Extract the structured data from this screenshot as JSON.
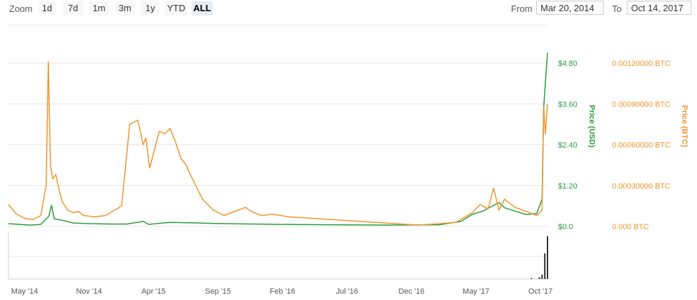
{
  "toolbar": {
    "zoom_label": "Zoom",
    "buttons": [
      "1d",
      "7d",
      "1m",
      "3m",
      "1y",
      "YTD",
      "ALL"
    ],
    "active": "ALL",
    "from_label": "From",
    "from_value": "Mar 20, 2014",
    "to_label": "To",
    "to_value": "Oct 14, 2017"
  },
  "colors": {
    "usd": "#2a9b3c",
    "btc": "#f0952a",
    "grid": "#e6e6e6",
    "volume": "#333333"
  },
  "chart_data": {
    "type": "line",
    "x_labels": [
      "May '14",
      "Nov '14",
      "Apr '15",
      "Sep '15",
      "Feb '16",
      "Jul '16",
      "Dec '16",
      "May '17",
      "Oct '17"
    ],
    "y_left": {
      "label": "Price (USD)",
      "ticks": [
        "$0.0",
        "$1.20",
        "$2.40",
        "$3.60",
        "$4.80"
      ],
      "range": [
        0,
        4.8
      ]
    },
    "y_right": {
      "label": "Price (BTC)",
      "ticks": [
        "0.000 BTC",
        "0.00030000 BTC",
        "0.00060000 BTC",
        "0.00090000 BTC",
        "0.00120000 BTC"
      ],
      "range": [
        0,
        0.0012
      ]
    },
    "series": [
      {
        "name": "Price (USD)",
        "axis": "left",
        "x": [
          0.0,
          0.02,
          0.04,
          0.06,
          0.075,
          0.08,
          0.085,
          0.1,
          0.12,
          0.15,
          0.19,
          0.22,
          0.25,
          0.26,
          0.28,
          0.3,
          0.35,
          0.4,
          0.5,
          0.6,
          0.7,
          0.8,
          0.84,
          0.86,
          0.88,
          0.9,
          0.91,
          0.92,
          0.94,
          0.96,
          0.98,
          0.99,
          0.993,
          0.996,
          1.0
        ],
        "y": [
          0.08,
          0.06,
          0.04,
          0.06,
          0.3,
          0.62,
          0.22,
          0.18,
          0.1,
          0.08,
          0.07,
          0.07,
          0.15,
          0.06,
          0.09,
          0.12,
          0.1,
          0.08,
          0.06,
          0.05,
          0.04,
          0.05,
          0.15,
          0.35,
          0.45,
          0.62,
          0.7,
          0.55,
          0.45,
          0.35,
          0.38,
          0.8,
          3.5,
          4.2,
          5.1
        ]
      },
      {
        "name": "Price (BTC)",
        "axis": "right",
        "x": [
          0.0,
          0.015,
          0.03,
          0.045,
          0.06,
          0.07,
          0.074,
          0.078,
          0.082,
          0.088,
          0.095,
          0.1,
          0.11,
          0.12,
          0.13,
          0.14,
          0.16,
          0.18,
          0.21,
          0.225,
          0.24,
          0.25,
          0.255,
          0.262,
          0.27,
          0.28,
          0.29,
          0.3,
          0.31,
          0.32,
          0.33,
          0.335,
          0.345,
          0.36,
          0.38,
          0.4,
          0.42,
          0.44,
          0.45,
          0.47,
          0.49,
          0.52,
          0.56,
          0.6,
          0.64,
          0.68,
          0.72,
          0.76,
          0.8,
          0.83,
          0.86,
          0.875,
          0.89,
          0.9,
          0.91,
          0.92,
          0.94,
          0.96,
          0.98,
          0.99,
          0.993,
          0.996,
          1.0
        ],
        "y": [
          0.00016,
          9e-05,
          6e-05,
          5e-05,
          8e-05,
          0.0003,
          0.00121,
          0.00045,
          0.00035,
          0.00038,
          0.00025,
          0.00018,
          0.00012,
          0.0001,
          0.00011,
          8e-05,
          7e-05,
          8e-05,
          0.00015,
          0.00075,
          0.00078,
          0.0006,
          0.00065,
          0.00043,
          0.00055,
          0.0007,
          0.00068,
          0.00072,
          0.00062,
          0.0005,
          0.00045,
          0.0004,
          0.00032,
          0.0002,
          0.00012,
          8e-05,
          0.00011,
          0.00014,
          0.00011,
          8e-05,
          9e-05,
          7e-05,
          6e-05,
          5e-05,
          4e-05,
          3e-05,
          2e-05,
          1e-05,
          2e-05,
          3e-05,
          0.0001,
          0.00016,
          0.00013,
          0.00028,
          0.00012,
          0.0002,
          0.00014,
          0.00011,
          8e-05,
          0.00012,
          0.00088,
          0.00068,
          0.0009
        ]
      }
    ],
    "volume": {
      "x": [
        0.97,
        0.985,
        0.99,
        0.995,
        1.0
      ],
      "relative": [
        0.02,
        0.04,
        0.1,
        0.6,
        1.0
      ]
    }
  }
}
